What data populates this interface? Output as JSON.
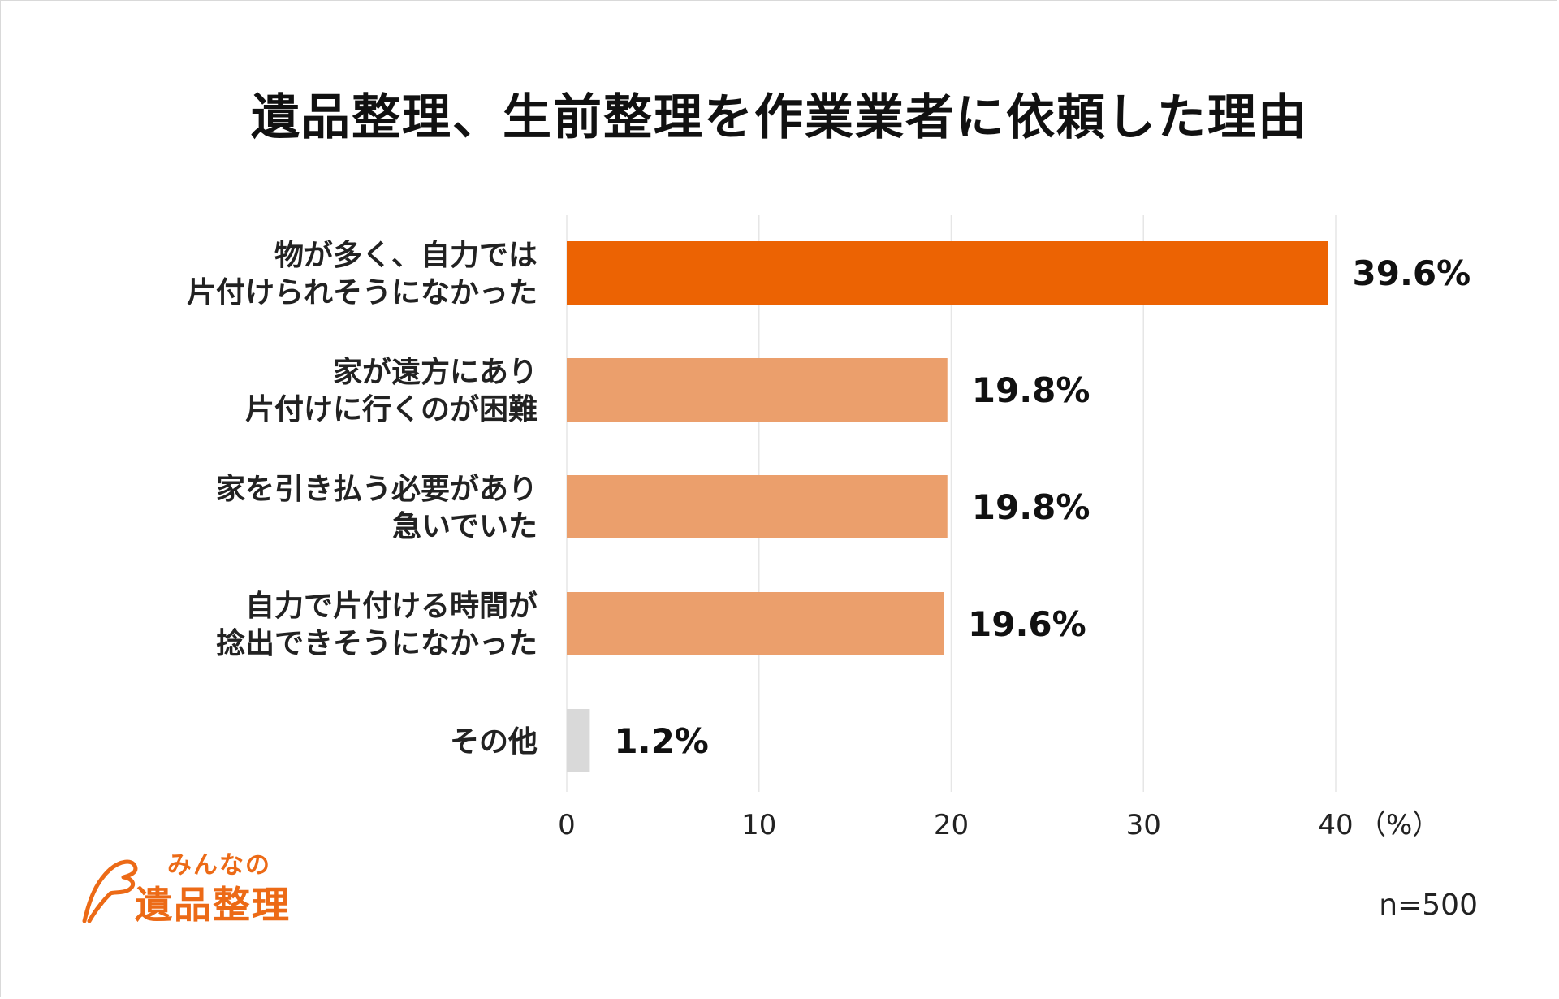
{
  "title": "遺品整理、生前整理を作業業者に依頼した理由",
  "sample_size": "n=500",
  "logo": {
    "line1": "みんなの",
    "line2": "遺品整理",
    "icon": "wing-icon"
  },
  "colors": {
    "highlight": "#ec6303",
    "normal": "#eb9f6c",
    "other": "#d9d9d9",
    "grid": "#e6e6e6"
  },
  "chart_data": {
    "type": "bar",
    "orientation": "horizontal",
    "categories": [
      [
        "物が多く、自力では",
        "片付けられそうになかった"
      ],
      [
        "家が遠方にあり",
        "片付けに行くのが困難"
      ],
      [
        "家を引き払う必要があり",
        "急いでいた"
      ],
      [
        "自力で片付ける時間が",
        "捻出できそうになかった"
      ],
      [
        "その他"
      ]
    ],
    "values": [
      39.6,
      19.8,
      19.8,
      19.6,
      1.2
    ],
    "value_labels": [
      "39.6%",
      "19.8%",
      "19.8%",
      "19.6%",
      "1.2%"
    ],
    "bar_colors": [
      "#ec6303",
      "#eb9f6c",
      "#eb9f6c",
      "#eb9f6c",
      "#d9d9d9"
    ],
    "xlim": [
      0,
      40
    ],
    "xticks": [
      0,
      10,
      20,
      30,
      40
    ],
    "xtick_labels": [
      "0",
      "10",
      "20",
      "30",
      "40"
    ],
    "unit": "（%）",
    "grid": true
  }
}
